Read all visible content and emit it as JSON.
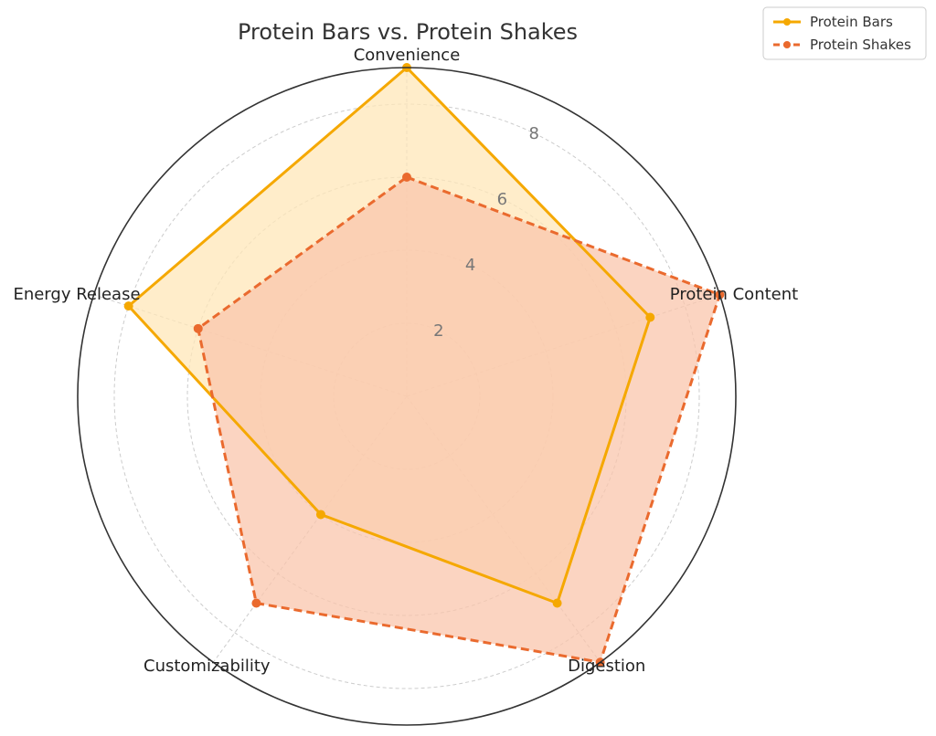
{
  "chart_data": {
    "type": "radar",
    "title": "Protein Bars vs. Protein Shakes",
    "axes": [
      "Convenience",
      "Protein Content",
      "Digestion",
      "Customizability",
      "Energy Release"
    ],
    "rmax": 9,
    "ticks": [
      2,
      4,
      6,
      8
    ],
    "grid": true,
    "legend_position": "top-right",
    "series": [
      {
        "name": "Protein Bars",
        "values": [
          9,
          7,
          7,
          4,
          8
        ],
        "color": "#f5a800",
        "fill": "#ffe7b8",
        "dashed": false
      },
      {
        "name": "Protein Shakes",
        "values": [
          6,
          9,
          9,
          7,
          6
        ],
        "color": "#ea6a2e",
        "fill": "#f9c6ac",
        "dashed": true
      }
    ]
  }
}
